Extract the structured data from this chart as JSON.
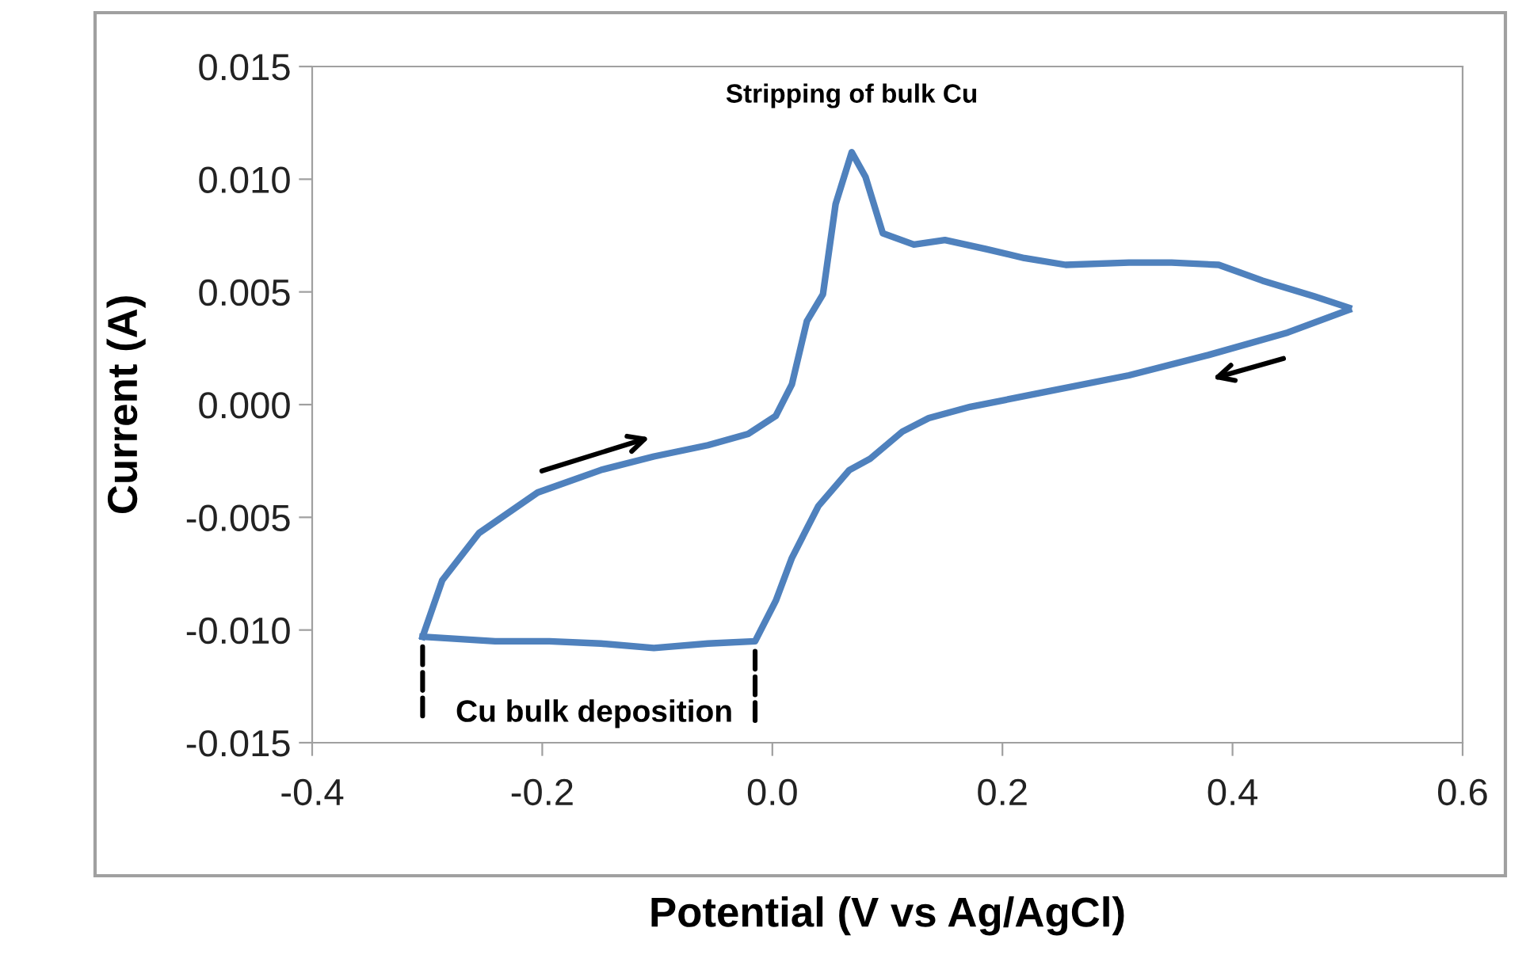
{
  "chart_data": {
    "type": "line",
    "xlabel": "Potential (V vs Ag/AgCl)",
    "ylabel": "Current (A)",
    "xlim": [
      -0.4,
      0.6
    ],
    "xticks": [
      {
        "value": -0.4,
        "label": "-0.4"
      },
      {
        "value": -0.2,
        "label": "-0.2"
      },
      {
        "value": 0.0,
        "label": "0.0"
      },
      {
        "value": 0.2,
        "label": "0.2"
      },
      {
        "value": 0.4,
        "label": "0.4"
      },
      {
        "value": 0.6,
        "label": "0.6"
      }
    ],
    "ylim": [
      -0.015,
      0.015
    ],
    "yticks": [
      {
        "value": -0.015,
        "label": "-0.015"
      },
      {
        "value": -0.01,
        "label": "-0.010"
      },
      {
        "value": -0.005,
        "label": "-0.005"
      },
      {
        "value": 0.0,
        "label": "0.000"
      },
      {
        "value": 0.005,
        "label": "0.005"
      },
      {
        "value": 0.01,
        "label": "0.010"
      },
      {
        "value": 0.015,
        "label": "0.015"
      }
    ],
    "grid": false,
    "legend": false,
    "marker": "none",
    "line_style": "solid",
    "series": [
      {
        "color": "#4f81bd",
        "x": [
          -0.304,
          -0.287,
          -0.255,
          -0.204,
          -0.149,
          -0.103,
          -0.056,
          -0.021,
          0.003,
          0.017,
          0.03,
          0.044,
          0.055,
          0.069,
          0.081,
          0.096,
          0.123,
          0.15,
          0.186,
          0.219,
          0.255,
          0.31,
          0.347,
          0.388,
          0.426,
          0.471,
          0.501
        ],
        "values": [
          -0.0103,
          -0.0078,
          -0.0057,
          -0.0039,
          -0.0029,
          -0.0023,
          -0.0018,
          -0.0013,
          -0.0005,
          0.0009,
          0.0037,
          0.0049,
          0.0089,
          0.0112,
          0.0101,
          0.0076,
          0.0071,
          0.0073,
          0.0069,
          0.0065,
          0.0062,
          0.0063,
          0.0063,
          0.0062,
          0.0055,
          0.0048,
          0.0043
        ]
      },
      {
        "color": "#4f81bd",
        "x": [
          0.501,
          0.448,
          0.379,
          0.31,
          0.241,
          0.172,
          0.136,
          0.113,
          0.085,
          0.067,
          0.04,
          0.017,
          0.003,
          -0.015,
          -0.056,
          -0.103,
          -0.149,
          -0.194,
          -0.241,
          -0.304
        ],
        "values": [
          0.0042,
          0.0032,
          0.0022,
          0.0013,
          0.0006,
          -0.0001,
          -0.0006,
          -0.0012,
          -0.0024,
          -0.0029,
          -0.0045,
          -0.0068,
          -0.0087,
          -0.0105,
          -0.0106,
          -0.0108,
          -0.0106,
          -0.0105,
          -0.0105,
          -0.0103
        ]
      }
    ],
    "annotations": [
      {
        "text": "Stripping of bulk Cu",
        "x": 0.069,
        "y": 0.0112
      },
      {
        "text": "Cu bulk deposition",
        "x": -0.304,
        "y": -0.0103
      }
    ]
  }
}
